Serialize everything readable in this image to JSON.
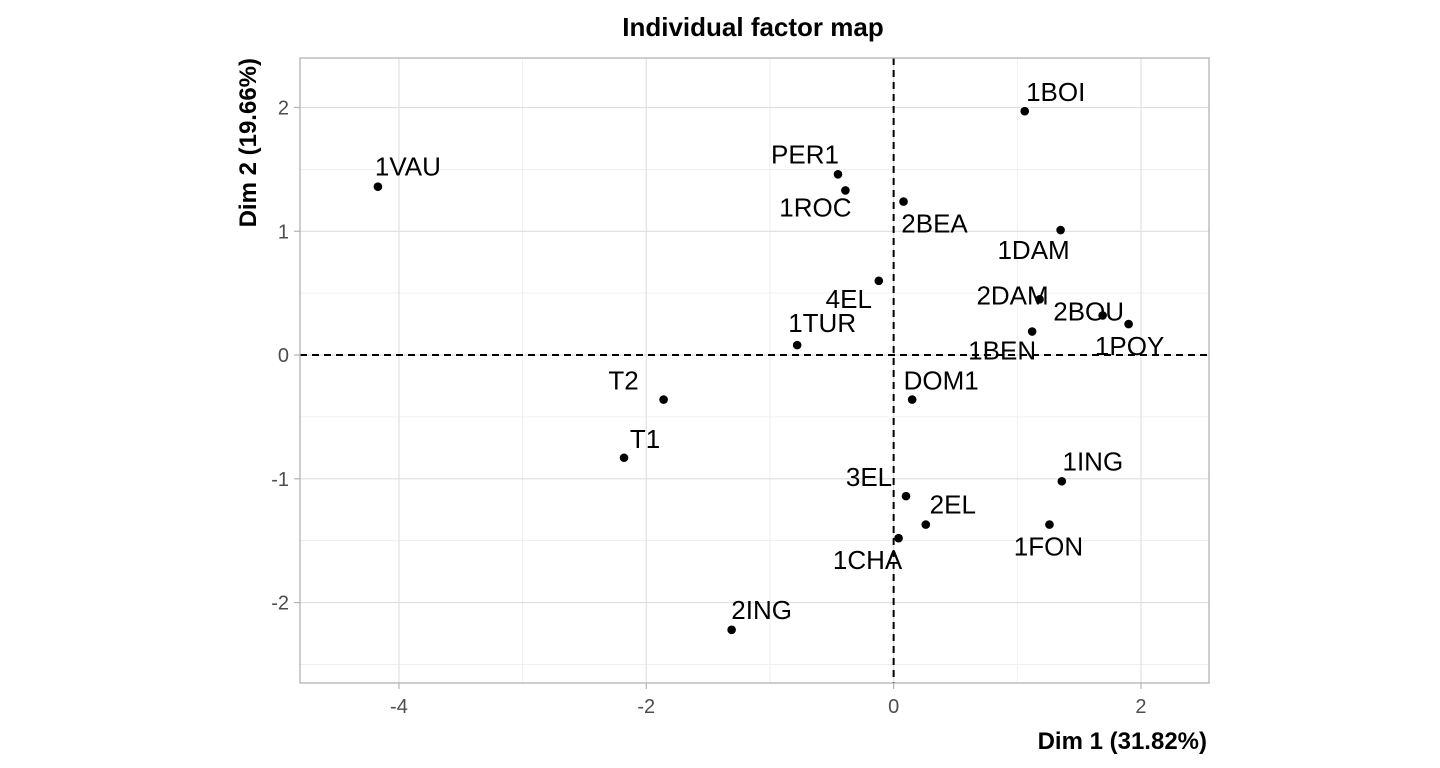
{
  "chart_data": {
    "type": "scatter",
    "title": "Individual factor map",
    "xlabel": "Dim 1 (31.82%)",
    "ylabel": "Dim 2 (19.66%)",
    "xlim": [
      -4.8,
      2.55
    ],
    "ylim": [
      -2.65,
      2.4
    ],
    "x_ticks": [
      -4,
      -2,
      0,
      2
    ],
    "y_ticks": [
      -2,
      -1,
      0,
      1,
      2
    ],
    "x_tick_labels": [
      "-4",
      "-2",
      "0",
      "2"
    ],
    "y_tick_labels": [
      "-2",
      "-1",
      "0",
      "1",
      "2"
    ],
    "reference_lines": {
      "x": 0,
      "y": 0
    },
    "grid": true,
    "point_color": "#000000",
    "points": [
      {
        "label": "1VAU",
        "x": -4.17,
        "y": 1.36
      },
      {
        "label": "1BOI",
        "x": 1.06,
        "y": 1.97
      },
      {
        "label": "PER1",
        "x": -0.45,
        "y": 1.46
      },
      {
        "label": "1ROC",
        "x": -0.39,
        "y": 1.33
      },
      {
        "label": "2BEA",
        "x": 0.08,
        "y": 1.24
      },
      {
        "label": "1DAM",
        "x": 1.35,
        "y": 1.01
      },
      {
        "label": "4EL",
        "x": -0.12,
        "y": 0.6
      },
      {
        "label": "2DAM",
        "x": 1.18,
        "y": 0.45
      },
      {
        "label": "2BOU",
        "x": 1.69,
        "y": 0.32
      },
      {
        "label": "1POY",
        "x": 1.9,
        "y": 0.25
      },
      {
        "label": "1BEN",
        "x": 1.12,
        "y": 0.19
      },
      {
        "label": "1TUR",
        "x": -0.78,
        "y": 0.08
      },
      {
        "label": "T2",
        "x": -1.86,
        "y": -0.36
      },
      {
        "label": "DOM1",
        "x": 0.15,
        "y": -0.36
      },
      {
        "label": "T1",
        "x": -2.18,
        "y": -0.83
      },
      {
        "label": "1ING",
        "x": 1.36,
        "y": -1.02
      },
      {
        "label": "3EL",
        "x": 0.1,
        "y": -1.14
      },
      {
        "label": "2EL",
        "x": 0.26,
        "y": -1.37
      },
      {
        "label": "1FON",
        "x": 1.26,
        "y": -1.37
      },
      {
        "label": "1CHA",
        "x": 0.04,
        "y": -1.48
      },
      {
        "label": "2ING",
        "x": -1.31,
        "y": -2.22
      }
    ]
  }
}
